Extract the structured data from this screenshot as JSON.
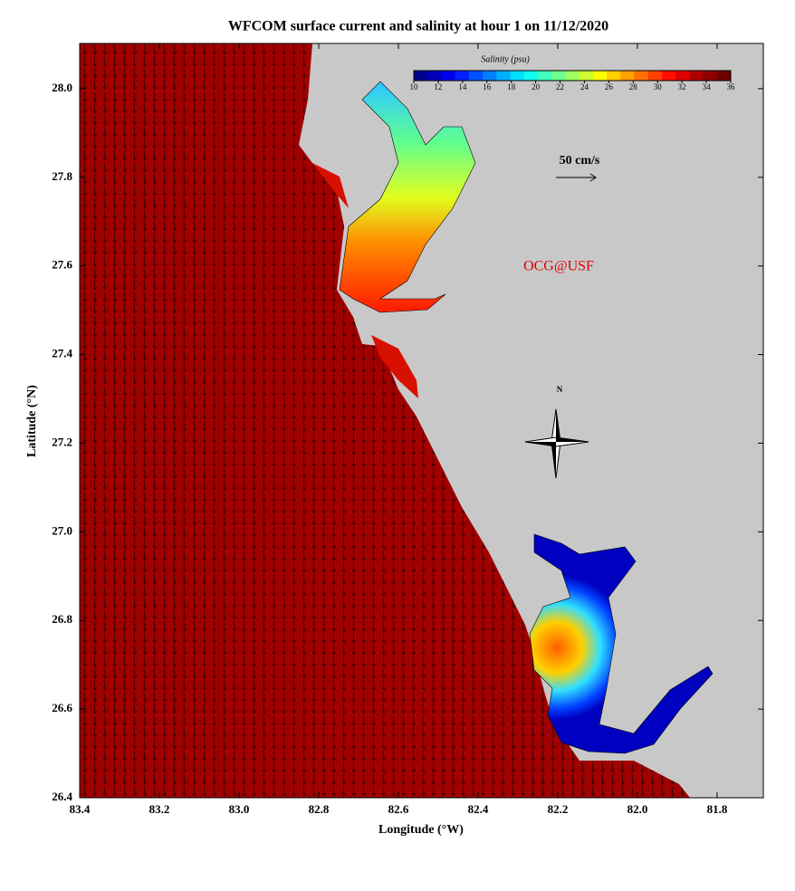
{
  "title": "WFCOM surface current and salinity at hour 1 on 11/12/2020",
  "map": {
    "x_label": "Longitude (°W)",
    "y_label": "Latitude (°N)",
    "xlim": [
      83.4,
      81.684
    ],
    "ylim": [
      26.4,
      28.102
    ],
    "xticks": [
      83.4,
      83.2,
      {
        "value": 83,
        "label": "83.0"
      },
      82.8,
      82.6,
      82.4,
      82.2,
      {
        "value": 82,
        "label": "82.0"
      },
      81.8
    ],
    "yticks": [
      26.4,
      26.6,
      26.8,
      {
        "value": 27,
        "label": "27.0"
      },
      27.2,
      27.4,
      27.6,
      27.8,
      {
        "value": 28,
        "label": "28.0"
      }
    ],
    "colorbar": {
      "label": "Salinity (psu)",
      "ticks": [
        10,
        12,
        14,
        16,
        18,
        20,
        22,
        24,
        26,
        28,
        30,
        32,
        34,
        36
      ],
      "colors": [
        "#00008f",
        "#0000bf",
        "#0000ef",
        "#0020ff",
        "#0050ff",
        "#0080ff",
        "#00afff",
        "#00dfff",
        "#10ffef",
        "#40ffbf",
        "#70ff8f",
        "#9fff60",
        "#cfff30",
        "#ffff00",
        "#ffcf00",
        "#ff9f00",
        "#ff7000",
        "#ff4000",
        "#ff1000",
        "#df0000",
        "#af0000",
        "#8f0000",
        "#700000"
      ]
    },
    "scale_label": "50 cm/s",
    "credit": "OCG@USF",
    "north_label": "N"
  }
}
